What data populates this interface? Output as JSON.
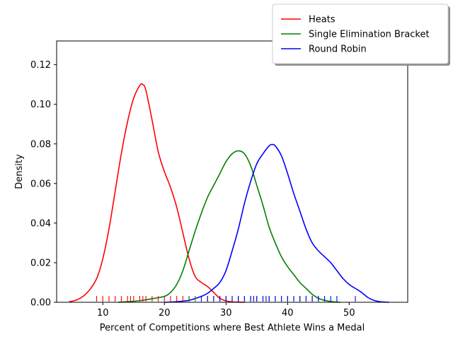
{
  "chart_data": {
    "type": "line",
    "xlabel": "Percent of Competitions where Best Athlete Wins a Medal",
    "ylabel": "Density",
    "xlim": [
      2.5,
      59.5
    ],
    "ylim": [
      0,
      0.132
    ],
    "xticks": [
      10,
      20,
      30,
      40,
      50
    ],
    "yticks": [
      0.0,
      0.02,
      0.04,
      0.06,
      0.08,
      0.1,
      0.12
    ],
    "ytick_labels": [
      "0.00",
      "0.02",
      "0.04",
      "0.06",
      "0.08",
      "0.10",
      "0.12"
    ],
    "grid": false,
    "legend_position": "upper-right-outside",
    "series": [
      {
        "name": "Heats",
        "color": "#ff0000",
        "x": [
          4.5,
          6,
          7.5,
          9,
          10,
          11,
          12,
          13,
          14,
          15,
          16,
          16.5,
          17,
          18,
          19,
          20,
          21,
          22,
          23,
          24,
          25,
          26,
          27,
          28,
          29,
          30,
          31,
          32,
          33
        ],
        "y": [
          0.0002,
          0.0015,
          0.005,
          0.012,
          0.022,
          0.037,
          0.056,
          0.075,
          0.091,
          0.103,
          0.1095,
          0.11,
          0.107,
          0.092,
          0.076,
          0.066,
          0.058,
          0.048,
          0.035,
          0.022,
          0.013,
          0.01,
          0.008,
          0.005,
          0.002,
          0.0007,
          0.0002,
          5e-05,
          0.0
        ],
        "rug": [
          9,
          10,
          11,
          12,
          13,
          14,
          14.5,
          15,
          16,
          16.5,
          17,
          18,
          19,
          20,
          21,
          22,
          23,
          24
        ]
      },
      {
        "name": "Single Elimination Bracket",
        "color": "#008000",
        "x": [
          12.5,
          14,
          16,
          18,
          20,
          21,
          22,
          23,
          24,
          25,
          26,
          27,
          28,
          29,
          30,
          31,
          32,
          33,
          34,
          35,
          36,
          37,
          38,
          39,
          40,
          41,
          42,
          43,
          44,
          45,
          46,
          47,
          48.5
        ],
        "y": [
          0.0,
          0.0003,
          0.0008,
          0.0018,
          0.003,
          0.005,
          0.009,
          0.016,
          0.026,
          0.036,
          0.045,
          0.053,
          0.059,
          0.065,
          0.071,
          0.075,
          0.0765,
          0.075,
          0.069,
          0.059,
          0.049,
          0.038,
          0.03,
          0.023,
          0.018,
          0.014,
          0.01,
          0.007,
          0.004,
          0.002,
          0.001,
          0.0004,
          0.0
        ],
        "rug": [
          24,
          25,
          26,
          27,
          28,
          29,
          30,
          31,
          32,
          33,
          34,
          35,
          36,
          37,
          38,
          39,
          40,
          41,
          42,
          43,
          44,
          45,
          46
        ]
      },
      {
        "name": "Round Robin",
        "color": "#0000ff",
        "x": [
          20,
          22,
          24,
          26,
          27,
          28,
          29,
          30,
          31,
          32,
          33,
          34,
          35,
          36,
          37,
          37.5,
          38,
          39,
          40,
          41,
          42,
          43,
          44,
          45,
          46,
          47,
          48,
          49,
          50,
          51,
          52,
          53,
          54,
          55,
          56.5
        ],
        "y": [
          0.0,
          0.0003,
          0.001,
          0.003,
          0.0045,
          0.007,
          0.01,
          0.016,
          0.026,
          0.037,
          0.05,
          0.061,
          0.07,
          0.075,
          0.079,
          0.0797,
          0.079,
          0.074,
          0.065,
          0.055,
          0.046,
          0.037,
          0.03,
          0.026,
          0.023,
          0.02,
          0.016,
          0.012,
          0.009,
          0.007,
          0.005,
          0.0025,
          0.001,
          0.0003,
          0.0
        ],
        "rug": [
          26,
          27,
          28,
          29,
          30,
          31,
          32,
          33,
          34,
          34.5,
          35,
          36,
          36.5,
          37,
          38,
          39,
          40,
          41,
          42,
          43,
          44,
          45,
          46,
          47,
          48,
          51
        ]
      }
    ]
  }
}
